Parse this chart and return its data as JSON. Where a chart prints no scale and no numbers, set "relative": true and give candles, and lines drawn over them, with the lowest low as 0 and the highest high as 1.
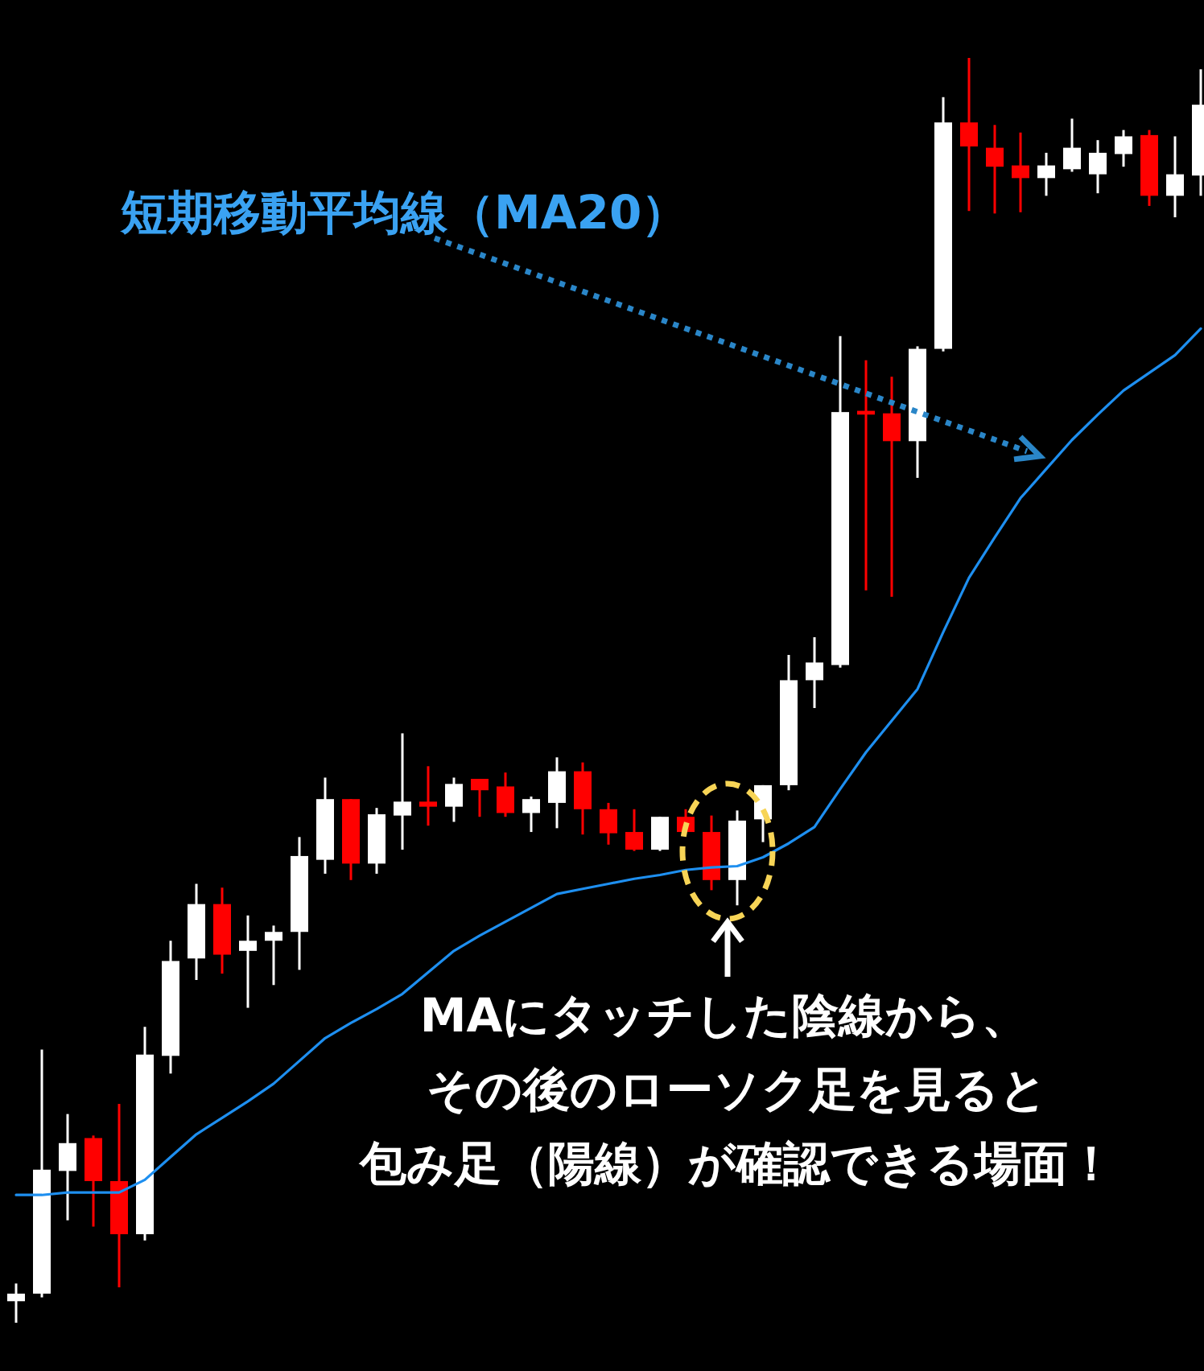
{
  "chart_data": {
    "type": "candlestick",
    "relative": true,
    "categories": [
      null,
      null,
      null,
      null,
      null,
      null,
      null,
      null,
      null,
      null,
      null,
      null,
      null,
      null,
      null,
      null,
      null,
      null,
      null,
      null,
      null,
      null,
      null,
      null,
      null,
      null,
      null,
      null,
      null,
      null,
      null,
      null,
      null,
      null,
      null,
      null,
      null,
      null,
      null,
      null,
      null,
      null,
      null,
      null,
      null,
      null,
      null
    ],
    "ohlc": [
      [
        0.017,
        0.031,
        0,
        0.023
      ],
      [
        0.023,
        0.216,
        0.02,
        0.121
      ],
      [
        0.12,
        0.165,
        0.081,
        0.142
      ],
      [
        0.146,
        0.148,
        0.076,
        0.112
      ],
      [
        0.112,
        0.173,
        0.028,
        0.07
      ],
      [
        0.07,
        0.234,
        0.065,
        0.212
      ],
      [
        0.211,
        0.302,
        0.197,
        0.286
      ],
      [
        0.288,
        0.347,
        0.271,
        0.331
      ],
      [
        0.331,
        0.344,
        0.276,
        0.291
      ],
      [
        0.294,
        0.322,
        0.249,
        0.302
      ],
      [
        0.302,
        0.314,
        0.267,
        0.309
      ],
      [
        0.309,
        0.384,
        0.279,
        0.369
      ],
      [
        0.366,
        0.431,
        0.355,
        0.414
      ],
      [
        0.414,
        0.414,
        0.35,
        0.363
      ],
      [
        0.363,
        0.407,
        0.355,
        0.402
      ],
      [
        0.401,
        0.466,
        0.374,
        0.412
      ],
      [
        0.412,
        0.44,
        0.393,
        0.408
      ],
      [
        0.408,
        0.431,
        0.396,
        0.426
      ],
      [
        0.43,
        0.43,
        0.4,
        0.421
      ],
      [
        0.424,
        0.435,
        0.4,
        0.403
      ],
      [
        0.403,
        0.416,
        0.388,
        0.414
      ],
      [
        0.411,
        0.447,
        0.391,
        0.436
      ],
      [
        0.436,
        0.443,
        0.386,
        0.406
      ],
      [
        0.406,
        0.411,
        0.378,
        0.387
      ],
      [
        0.388,
        0.406,
        0.373,
        0.374
      ],
      [
        0.374,
        0.4,
        0.373,
        0.4
      ],
      [
        0.4,
        0.406,
        0.388,
        0.388
      ],
      [
        0.388,
        0.401,
        0.342,
        0.35
      ],
      [
        0.35,
        0.405,
        0.33,
        0.397
      ],
      [
        0.398,
        0.425,
        0.38,
        0.425
      ],
      [
        0.425,
        0.528,
        0.421,
        0.508
      ],
      [
        0.508,
        0.542,
        0.486,
        0.522
      ],
      [
        0.52,
        0.78,
        0.518,
        0.72
      ],
      [
        0.721,
        0.761,
        0.579,
        0.718
      ],
      [
        0.719,
        0.748,
        0.574,
        0.697
      ],
      [
        0.697,
        0.772,
        0.668,
        0.77
      ],
      [
        0.77,
        0.969,
        0.768,
        0.949
      ],
      [
        0.949,
        1.0,
        0.879,
        0.93
      ],
      [
        0.929,
        0.947,
        0.877,
        0.914
      ],
      [
        0.915,
        0.941,
        0.878,
        0.905
      ],
      [
        0.905,
        0.925,
        0.891,
        0.915
      ],
      [
        0.912,
        0.952,
        0.91,
        0.929
      ],
      [
        0.908,
        0.935,
        0.893,
        0.925
      ],
      [
        0.924,
        0.943,
        0.914,
        0.938
      ],
      [
        0.939,
        0.943,
        0.883,
        0.891
      ],
      [
        0.891,
        0.938,
        0.874,
        0.908
      ],
      [
        0.907,
        0.991,
        0.891,
        0.963
      ]
    ],
    "colors": [
      "#ffffff",
      "#ffffff",
      "#ffffff",
      "#ff0000",
      "#ff0000",
      "#ffffff",
      "#ffffff",
      "#ffffff",
      "#ff0000",
      "#ffffff",
      "#ffffff",
      "#ffffff",
      "#ffffff",
      "#ff0000",
      "#ffffff",
      "#ffffff",
      "#ff0000",
      "#ffffff",
      "#ff0000",
      "#ff0000",
      "#ffffff",
      "#ffffff",
      "#ff0000",
      "#ff0000",
      "#ff0000",
      "#ffffff",
      "#ff0000",
      "#ff0000",
      "#ffffff",
      "#ffffff",
      "#ffffff",
      "#ffffff",
      "#ffffff",
      "#ff0000",
      "#ff0000",
      "#ffffff",
      "#ffffff",
      "#ff0000",
      "#ff0000",
      "#ff0000",
      "#ffffff",
      "#ffffff",
      "#ffffff",
      "#ffffff",
      "#ff0000",
      "#ffffff",
      "#ffffff"
    ],
    "series": [
      {
        "type": "line",
        "name": "短期移動平均線（MA20）",
        "color": "#1e8ff0",
        "values": [
          0.101,
          0.101,
          0.103,
          0.103,
          0.103,
          0.113,
          0.131,
          0.149,
          0.162,
          0.175,
          0.189,
          0.207,
          0.225,
          0.237,
          0.248,
          0.26,
          0.277,
          0.294,
          0.306,
          0.317,
          0.328,
          0.339,
          0.343,
          0.347,
          0.351,
          0.354,
          0.358,
          0.36,
          0.361,
          0.368,
          0.379,
          0.392,
          0.422,
          0.451,
          0.476,
          0.501,
          0.546,
          0.589,
          0.621,
          0.652,
          0.675,
          0.698,
          0.718,
          0.737,
          0.751,
          0.765,
          0.786
        ]
      }
    ],
    "annotations": [
      "MAにタッチした陰線から、",
      "その後のローソク足を見ると",
      "包み足（陽線）が確認できる場面！"
    ]
  }
}
